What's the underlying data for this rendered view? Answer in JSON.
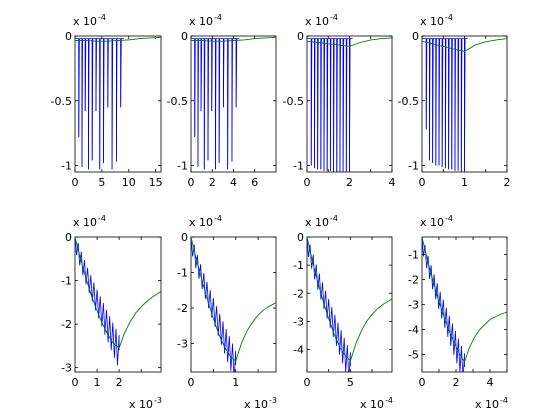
{
  "colors": {
    "data_series": "#0000ff",
    "envelope_series": "#007f00",
    "axes": "#000000"
  },
  "chart_data": [
    {
      "type": "line",
      "multiplier_label": "x 10",
      "multiplier_exp": "-4",
      "xlim": [
        0,
        16
      ],
      "ylim": [
        -1.05,
        0
      ],
      "x_ticks": [
        0,
        5,
        10,
        15
      ],
      "x_tick_labels": [
        "0",
        "5",
        "10",
        "15"
      ],
      "y_ticks": [
        -1,
        -0.5,
        0
      ],
      "y_tick_labels": [
        "-1",
        "-0.5",
        "0"
      ],
      "x_multiplier": "",
      "x_multiplier_exp": "",
      "series": [
        {
          "role": "impulse",
          "x": [
            0.7,
            1.3,
            1.9,
            2.5,
            3.2,
            3.9,
            4.6,
            5.3,
            6.1,
            6.9,
            7.7,
            8.5
          ],
          "y": [
            -0.78,
            -1.01,
            -0.58,
            -1.03,
            -0.96,
            -0.58,
            -1.03,
            -0.98,
            -0.55,
            -1.03,
            -0.97,
            -0.55
          ]
        },
        {
          "role": "envelope",
          "x": [
            0,
            2,
            4,
            6,
            8,
            10,
            12,
            14,
            16
          ],
          "y": [
            -0.035,
            -0.035,
            -0.04,
            -0.04,
            -0.035,
            -0.03,
            -0.02,
            -0.015,
            -0.01
          ]
        }
      ]
    },
    {
      "type": "line",
      "multiplier_label": "x 10",
      "multiplier_exp": "-4",
      "xlim": [
        0,
        8
      ],
      "ylim": [
        -1.05,
        0
      ],
      "x_ticks": [
        0,
        2,
        4,
        6
      ],
      "x_tick_labels": [
        "0",
        "2",
        "4",
        "6"
      ],
      "y_ticks": [
        -1,
        -0.5,
        0
      ],
      "y_tick_labels": [
        "-1",
        "-0.5",
        "0"
      ],
      "x_multiplier": "",
      "x_multiplier_exp": "",
      "series": [
        {
          "role": "impulse",
          "x": [
            0.35,
            0.65,
            0.95,
            1.25,
            1.6,
            1.95,
            2.3,
            2.65,
            3.05,
            3.45,
            3.85,
            4.25
          ],
          "y": [
            -0.78,
            -1.01,
            -0.58,
            -1.03,
            -0.96,
            -0.58,
            -1.03,
            -0.98,
            -0.55,
            -1.03,
            -0.97,
            -0.55
          ]
        },
        {
          "role": "envelope",
          "x": [
            0,
            1,
            2,
            3,
            4,
            5,
            6,
            7,
            8
          ],
          "y": [
            -0.035,
            -0.035,
            -0.04,
            -0.04,
            -0.035,
            -0.03,
            -0.02,
            -0.015,
            -0.01
          ]
        }
      ]
    },
    {
      "type": "line",
      "multiplier_label": "x 10",
      "multiplier_exp": "-4",
      "xlim": [
        0,
        4
      ],
      "ylim": [
        -1.05,
        0
      ],
      "x_ticks": [
        0,
        1,
        2,
        3,
        4
      ],
      "x_tick_labels": [
        "0",
        "2",
        "4"
      ],
      "y_ticks": [
        -1,
        -0.5,
        0
      ],
      "y_tick_labels": [
        "-1",
        "-0.5",
        "0"
      ],
      "x_label_ticks": [
        0,
        2,
        4
      ],
      "x_multiplier": "",
      "x_multiplier_exp": "",
      "series": [
        {
          "role": "impulse",
          "x": [
            0.2,
            0.35,
            0.5,
            0.65,
            0.8,
            0.95,
            1.1,
            1.25,
            1.4,
            1.55,
            1.7,
            1.85,
            2.0
          ],
          "y": [
            -1.0,
            -1.02,
            -1.03,
            -1.03,
            -1.04,
            -1.04,
            -1.04,
            -1.05,
            -1.05,
            -1.05,
            -1.05,
            -1.05,
            -1.05
          ]
        },
        {
          "role": "envelope",
          "x": [
            0,
            0.5,
            1,
            1.5,
            2,
            2.5,
            3,
            3.5,
            4
          ],
          "y": [
            -0.04,
            -0.05,
            -0.06,
            -0.07,
            -0.08,
            -0.05,
            -0.03,
            -0.02,
            -0.015
          ]
        }
      ]
    },
    {
      "type": "line",
      "multiplier_label": "x 10",
      "multiplier_exp": "-4",
      "xlim": [
        0,
        2
      ],
      "ylim": [
        -1.05,
        0
      ],
      "x_ticks": [
        0,
        0.5,
        1,
        1.5,
        2
      ],
      "x_tick_labels": [
        "0",
        "1",
        "2"
      ],
      "y_ticks": [
        -1,
        -0.5,
        0
      ],
      "y_tick_labels": [
        "-1",
        "-0.5",
        "0"
      ],
      "x_label_ticks": [
        0,
        1,
        2
      ],
      "x_multiplier": "",
      "x_multiplier_exp": "",
      "series": [
        {
          "role": "impulse",
          "x": [
            0.1,
            0.175,
            0.25,
            0.325,
            0.4,
            0.475,
            0.55,
            0.625,
            0.7,
            0.775,
            0.85,
            0.925,
            1.0
          ],
          "y": [
            -0.72,
            -0.96,
            -0.98,
            -1.0,
            -1.0,
            -1.01,
            -1.02,
            -1.03,
            -1.03,
            -1.04,
            -1.04,
            -1.05,
            -1.05
          ]
        },
        {
          "role": "envelope",
          "x": [
            0,
            0.25,
            0.5,
            0.75,
            1,
            1.25,
            1.5,
            1.75,
            2
          ],
          "y": [
            -0.04,
            -0.06,
            -0.08,
            -0.1,
            -0.12,
            -0.07,
            -0.045,
            -0.03,
            -0.02
          ]
        }
      ]
    },
    {
      "type": "line",
      "multiplier_label": "x 10",
      "multiplier_exp": "-4",
      "xlim": [
        0,
        3.9
      ],
      "ylim": [
        -3.1,
        0
      ],
      "x_ticks": [
        0,
        1,
        2,
        3
      ],
      "x_tick_labels": [
        "0",
        "1",
        "2",
        ""
      ],
      "y_ticks": [
        -3,
        -2,
        -1,
        0
      ],
      "y_tick_labels": [
        "-3",
        "-2",
        "-1",
        "0"
      ],
      "x_multiplier": "x 10",
      "x_multiplier_exp": "-3",
      "series": [
        {
          "role": "sawtooth",
          "x_end": 2.0,
          "y_end": -2.6,
          "teeth": 14,
          "amp_start": 0.25,
          "amp_end": 0.7
        },
        {
          "role": "envelope",
          "x": [
            0,
            0.25,
            0.5,
            0.75,
            1,
            1.25,
            1.5,
            1.75,
            2,
            2.25,
            2.5,
            2.75,
            3,
            3.25,
            3.5,
            3.75,
            3.9
          ],
          "y": [
            0,
            -0.5,
            -0.95,
            -1.35,
            -1.7,
            -2.0,
            -2.25,
            -2.45,
            -2.55,
            -2.2,
            -1.95,
            -1.75,
            -1.6,
            -1.48,
            -1.38,
            -1.3,
            -1.25
          ]
        }
      ]
    },
    {
      "type": "line",
      "multiplier_label": "x 10",
      "multiplier_exp": "-4",
      "xlim": [
        0,
        1.9
      ],
      "ylim": [
        -3.8,
        0
      ],
      "x_ticks": [
        0,
        0.5,
        1,
        1.5
      ],
      "x_tick_labels": [
        "0",
        "",
        "1",
        ""
      ],
      "y_ticks": [
        -3,
        -2,
        -1,
        0
      ],
      "y_tick_labels": [
        "-3",
        "-2",
        "-1",
        "0"
      ],
      "x_multiplier": "x 10",
      "x_multiplier_exp": "-3",
      "series": [
        {
          "role": "sawtooth",
          "x_end": 1.0,
          "y_end": -3.6,
          "teeth": 14,
          "amp_start": 0.3,
          "amp_end": 0.8
        },
        {
          "role": "envelope",
          "x": [
            0,
            0.125,
            0.25,
            0.375,
            0.5,
            0.625,
            0.75,
            0.875,
            1.0,
            1.125,
            1.25,
            1.375,
            1.5,
            1.625,
            1.75,
            1.9
          ],
          "y": [
            0,
            -0.65,
            -1.25,
            -1.8,
            -2.3,
            -2.75,
            -3.1,
            -3.35,
            -3.5,
            -3.0,
            -2.65,
            -2.4,
            -2.2,
            -2.05,
            -1.95,
            -1.85
          ]
        }
      ]
    },
    {
      "type": "line",
      "multiplier_label": "x 10",
      "multiplier_exp": "-4",
      "xlim": [
        0,
        9.8
      ],
      "ylim": [
        -4.8,
        0
      ],
      "x_ticks": [
        0,
        2.5,
        5,
        7.5
      ],
      "x_tick_labels": [
        "0",
        "",
        "5",
        ""
      ],
      "y_ticks": [
        -4,
        -3,
        -2,
        -1,
        0
      ],
      "y_tick_labels": [
        "-4",
        "-3",
        "-2",
        "-1",
        "0"
      ],
      "x_multiplier": "x 10",
      "x_multiplier_exp": "-4",
      "series": [
        {
          "role": "sawtooth",
          "x_end": 5.0,
          "y_end": -4.6,
          "teeth": 14,
          "amp_start": 0.4,
          "amp_end": 1.0
        },
        {
          "role": "envelope",
          "x": [
            0,
            0.625,
            1.25,
            1.875,
            2.5,
            3.125,
            3.75,
            4.375,
            5.0,
            5.625,
            6.25,
            6.875,
            7.5,
            8.125,
            8.75,
            9.8
          ],
          "y": [
            0,
            -0.85,
            -1.6,
            -2.3,
            -2.9,
            -3.45,
            -3.9,
            -4.2,
            -4.4,
            -3.8,
            -3.35,
            -3.0,
            -2.75,
            -2.55,
            -2.4,
            -2.2
          ]
        }
      ]
    },
    {
      "type": "line",
      "multiplier_label": "x 10",
      "multiplier_exp": "-4",
      "xlim": [
        0,
        5
      ],
      "ylim": [
        -5.7,
        -0.3
      ],
      "x_ticks": [
        0,
        1,
        2,
        3,
        4,
        5
      ],
      "x_tick_labels": [
        "0",
        "2",
        "4"
      ],
      "y_ticks": [
        -5,
        -4,
        -3,
        -2,
        -1
      ],
      "y_tick_labels": [
        "-5",
        "-4",
        "-3",
        "-2",
        "-1"
      ],
      "x_label_ticks": [
        0,
        2,
        4
      ],
      "x_multiplier": "x 10",
      "x_multiplier_exp": "-4",
      "series": [
        {
          "role": "sawtooth",
          "x_end": 2.5,
          "y_end": -5.5,
          "teeth": 14,
          "amp_start": 0.4,
          "amp_end": 1.1,
          "y_start": -0.3
        },
        {
          "role": "envelope",
          "x": [
            0,
            0.3125,
            0.625,
            0.9375,
            1.25,
            1.5625,
            1.875,
            2.1875,
            2.5,
            2.8,
            3.1,
            3.4,
            3.7,
            4.0,
            4.3,
            4.6,
            5.0
          ],
          "y": [
            -0.3,
            -1.2,
            -2.0,
            -2.75,
            -3.4,
            -4.0,
            -4.5,
            -4.95,
            -5.3,
            -4.7,
            -4.3,
            -4.0,
            -3.8,
            -3.6,
            -3.5,
            -3.4,
            -3.3
          ]
        }
      ]
    }
  ]
}
